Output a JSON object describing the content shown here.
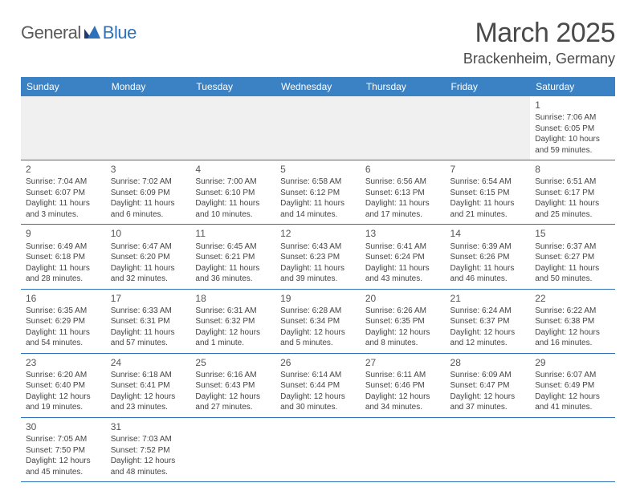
{
  "logo": {
    "word1": "General",
    "word2": "Blue",
    "brand_color": "#2f71b8",
    "dark_color": "#5a5a5a"
  },
  "header": {
    "month": "March 2025",
    "location": "Brackenheim, Germany"
  },
  "colors": {
    "header_bg": "#3b82c4",
    "rule": "#2f71b8",
    "blank_bg": "#f0f0f0"
  },
  "weekday_labels": [
    "Sunday",
    "Monday",
    "Tuesday",
    "Wednesday",
    "Thursday",
    "Friday",
    "Saturday"
  ],
  "weeks": [
    [
      null,
      null,
      null,
      null,
      null,
      null,
      {
        "day": "1",
        "sunrise": "Sunrise: 7:06 AM",
        "sunset": "Sunset: 6:05 PM",
        "daylight1": "Daylight: 10 hours",
        "daylight2": "and 59 minutes."
      }
    ],
    [
      {
        "day": "2",
        "sunrise": "Sunrise: 7:04 AM",
        "sunset": "Sunset: 6:07 PM",
        "daylight1": "Daylight: 11 hours",
        "daylight2": "and 3 minutes."
      },
      {
        "day": "3",
        "sunrise": "Sunrise: 7:02 AM",
        "sunset": "Sunset: 6:09 PM",
        "daylight1": "Daylight: 11 hours",
        "daylight2": "and 6 minutes."
      },
      {
        "day": "4",
        "sunrise": "Sunrise: 7:00 AM",
        "sunset": "Sunset: 6:10 PM",
        "daylight1": "Daylight: 11 hours",
        "daylight2": "and 10 minutes."
      },
      {
        "day": "5",
        "sunrise": "Sunrise: 6:58 AM",
        "sunset": "Sunset: 6:12 PM",
        "daylight1": "Daylight: 11 hours",
        "daylight2": "and 14 minutes."
      },
      {
        "day": "6",
        "sunrise": "Sunrise: 6:56 AM",
        "sunset": "Sunset: 6:13 PM",
        "daylight1": "Daylight: 11 hours",
        "daylight2": "and 17 minutes."
      },
      {
        "day": "7",
        "sunrise": "Sunrise: 6:54 AM",
        "sunset": "Sunset: 6:15 PM",
        "daylight1": "Daylight: 11 hours",
        "daylight2": "and 21 minutes."
      },
      {
        "day": "8",
        "sunrise": "Sunrise: 6:51 AM",
        "sunset": "Sunset: 6:17 PM",
        "daylight1": "Daylight: 11 hours",
        "daylight2": "and 25 minutes."
      }
    ],
    [
      {
        "day": "9",
        "sunrise": "Sunrise: 6:49 AM",
        "sunset": "Sunset: 6:18 PM",
        "daylight1": "Daylight: 11 hours",
        "daylight2": "and 28 minutes."
      },
      {
        "day": "10",
        "sunrise": "Sunrise: 6:47 AM",
        "sunset": "Sunset: 6:20 PM",
        "daylight1": "Daylight: 11 hours",
        "daylight2": "and 32 minutes."
      },
      {
        "day": "11",
        "sunrise": "Sunrise: 6:45 AM",
        "sunset": "Sunset: 6:21 PM",
        "daylight1": "Daylight: 11 hours",
        "daylight2": "and 36 minutes."
      },
      {
        "day": "12",
        "sunrise": "Sunrise: 6:43 AM",
        "sunset": "Sunset: 6:23 PM",
        "daylight1": "Daylight: 11 hours",
        "daylight2": "and 39 minutes."
      },
      {
        "day": "13",
        "sunrise": "Sunrise: 6:41 AM",
        "sunset": "Sunset: 6:24 PM",
        "daylight1": "Daylight: 11 hours",
        "daylight2": "and 43 minutes."
      },
      {
        "day": "14",
        "sunrise": "Sunrise: 6:39 AM",
        "sunset": "Sunset: 6:26 PM",
        "daylight1": "Daylight: 11 hours",
        "daylight2": "and 46 minutes."
      },
      {
        "day": "15",
        "sunrise": "Sunrise: 6:37 AM",
        "sunset": "Sunset: 6:27 PM",
        "daylight1": "Daylight: 11 hours",
        "daylight2": "and 50 minutes."
      }
    ],
    [
      {
        "day": "16",
        "sunrise": "Sunrise: 6:35 AM",
        "sunset": "Sunset: 6:29 PM",
        "daylight1": "Daylight: 11 hours",
        "daylight2": "and 54 minutes."
      },
      {
        "day": "17",
        "sunrise": "Sunrise: 6:33 AM",
        "sunset": "Sunset: 6:31 PM",
        "daylight1": "Daylight: 11 hours",
        "daylight2": "and 57 minutes."
      },
      {
        "day": "18",
        "sunrise": "Sunrise: 6:31 AM",
        "sunset": "Sunset: 6:32 PM",
        "daylight1": "Daylight: 12 hours",
        "daylight2": "and 1 minute."
      },
      {
        "day": "19",
        "sunrise": "Sunrise: 6:28 AM",
        "sunset": "Sunset: 6:34 PM",
        "daylight1": "Daylight: 12 hours",
        "daylight2": "and 5 minutes."
      },
      {
        "day": "20",
        "sunrise": "Sunrise: 6:26 AM",
        "sunset": "Sunset: 6:35 PM",
        "daylight1": "Daylight: 12 hours",
        "daylight2": "and 8 minutes."
      },
      {
        "day": "21",
        "sunrise": "Sunrise: 6:24 AM",
        "sunset": "Sunset: 6:37 PM",
        "daylight1": "Daylight: 12 hours",
        "daylight2": "and 12 minutes."
      },
      {
        "day": "22",
        "sunrise": "Sunrise: 6:22 AM",
        "sunset": "Sunset: 6:38 PM",
        "daylight1": "Daylight: 12 hours",
        "daylight2": "and 16 minutes."
      }
    ],
    [
      {
        "day": "23",
        "sunrise": "Sunrise: 6:20 AM",
        "sunset": "Sunset: 6:40 PM",
        "daylight1": "Daylight: 12 hours",
        "daylight2": "and 19 minutes."
      },
      {
        "day": "24",
        "sunrise": "Sunrise: 6:18 AM",
        "sunset": "Sunset: 6:41 PM",
        "daylight1": "Daylight: 12 hours",
        "daylight2": "and 23 minutes."
      },
      {
        "day": "25",
        "sunrise": "Sunrise: 6:16 AM",
        "sunset": "Sunset: 6:43 PM",
        "daylight1": "Daylight: 12 hours",
        "daylight2": "and 27 minutes."
      },
      {
        "day": "26",
        "sunrise": "Sunrise: 6:14 AM",
        "sunset": "Sunset: 6:44 PM",
        "daylight1": "Daylight: 12 hours",
        "daylight2": "and 30 minutes."
      },
      {
        "day": "27",
        "sunrise": "Sunrise: 6:11 AM",
        "sunset": "Sunset: 6:46 PM",
        "daylight1": "Daylight: 12 hours",
        "daylight2": "and 34 minutes."
      },
      {
        "day": "28",
        "sunrise": "Sunrise: 6:09 AM",
        "sunset": "Sunset: 6:47 PM",
        "daylight1": "Daylight: 12 hours",
        "daylight2": "and 37 minutes."
      },
      {
        "day": "29",
        "sunrise": "Sunrise: 6:07 AM",
        "sunset": "Sunset: 6:49 PM",
        "daylight1": "Daylight: 12 hours",
        "daylight2": "and 41 minutes."
      }
    ],
    [
      {
        "day": "30",
        "sunrise": "Sunrise: 7:05 AM",
        "sunset": "Sunset: 7:50 PM",
        "daylight1": "Daylight: 12 hours",
        "daylight2": "and 45 minutes."
      },
      {
        "day": "31",
        "sunrise": "Sunrise: 7:03 AM",
        "sunset": "Sunset: 7:52 PM",
        "daylight1": "Daylight: 12 hours",
        "daylight2": "and 48 minutes."
      },
      null,
      null,
      null,
      null,
      null
    ]
  ]
}
